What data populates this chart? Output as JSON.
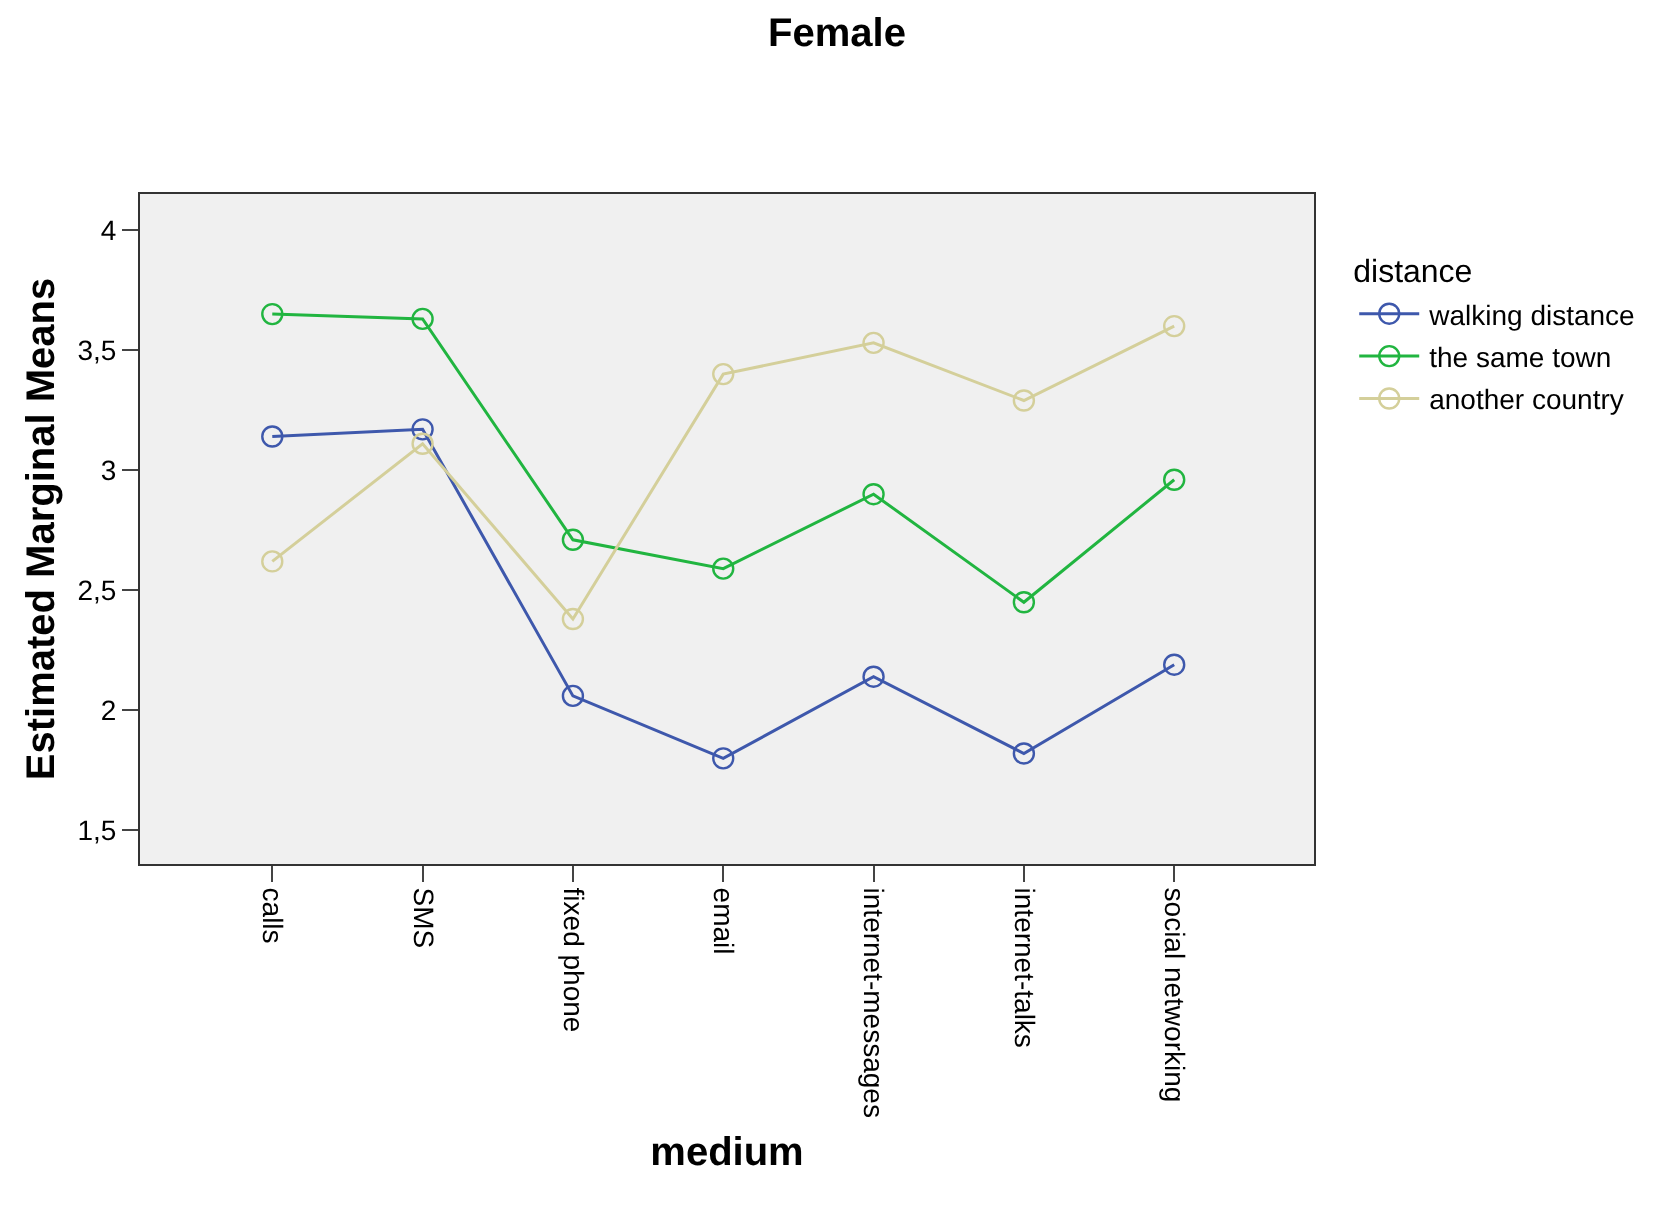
{
  "chart_data": {
    "type": "line",
    "title": "Female",
    "xlabel": "medium",
    "ylabel": "Estimated Marginal Means",
    "legend_title": "distance",
    "categories": [
      "calls",
      "SMS",
      "fixed phone",
      "email",
      "internet-messages",
      "internet-talks",
      "social networking"
    ],
    "series": [
      {
        "name": "walking distance",
        "color": "#3e58ac",
        "values": [
          3.14,
          3.17,
          2.06,
          1.8,
          2.14,
          1.82,
          2.19
        ]
      },
      {
        "name": "the same town",
        "color": "#21b540",
        "values": [
          3.65,
          3.63,
          2.71,
          2.59,
          2.9,
          2.45,
          2.96
        ]
      },
      {
        "name": "another country",
        "color": "#d4cf9a",
        "values": [
          2.62,
          3.11,
          2.38,
          3.4,
          3.53,
          3.29,
          3.6
        ]
      }
    ],
    "ylim": [
      1.36,
      4.15
    ],
    "yticks": [
      {
        "value": 1.5,
        "label": "1,5"
      },
      2,
      {
        "value": 2.5,
        "label": "2,5"
      },
      3,
      {
        "value": 3.5,
        "label": "3,5"
      },
      4
    ],
    "grid": false,
    "legend": "right",
    "marker": "circle",
    "line_style": "solid"
  }
}
